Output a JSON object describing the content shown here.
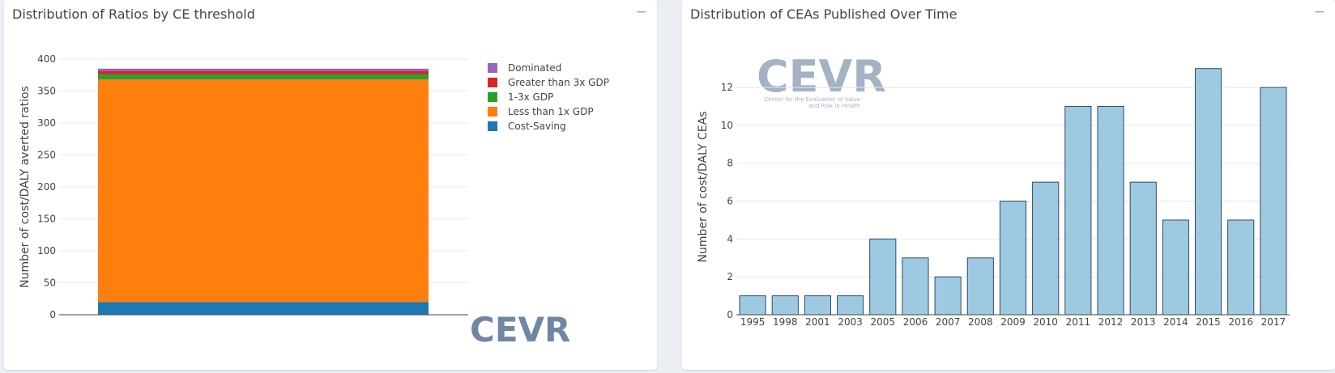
{
  "left_panel": {
    "title": "Distribution of Ratios by CE threshold",
    "collapse_icon": "minus-icon",
    "logo_text": "CEVR"
  },
  "right_panel": {
    "title": "Distribution of CEAs Published Over Time",
    "collapse_icon": "minus-icon",
    "logo_text": "CEVR",
    "logo_subtitle_line1": "Center for the Evaluation of Value",
    "logo_subtitle_line2": "and Risk in Health"
  },
  "chart_data": [
    {
      "type": "bar",
      "stacked": true,
      "categories": [
        ""
      ],
      "series": [
        {
          "name": "Cost-Saving",
          "values": [
            20
          ],
          "color": "#1f77b4"
        },
        {
          "name": "Less than 1x GDP",
          "values": [
            348
          ],
          "color": "#ff7f0e"
        },
        {
          "name": "1-3x GDP",
          "values": [
            8
          ],
          "color": "#2ca02c"
        },
        {
          "name": "Greater than 3x GDP",
          "values": [
            5
          ],
          "color": "#d62728"
        },
        {
          "name": "Dominated",
          "values": [
            4
          ],
          "color": "#9467bd"
        }
      ],
      "legend_order": [
        "Dominated",
        "Greater than 3x GDP",
        "1-3x GDP",
        "Less than 1x GDP",
        "Cost-Saving"
      ],
      "title": "",
      "xlabel": "",
      "ylabel": "Number of cost/DALY averted ratios",
      "ylim": [
        0,
        400
      ],
      "yticks": [
        0,
        50,
        100,
        150,
        200,
        250,
        300,
        350,
        400
      ],
      "grid": true,
      "legend_position": "top-right"
    },
    {
      "type": "bar",
      "categories": [
        "1995",
        "1998",
        "2001",
        "2003",
        "2005",
        "2006",
        "2007",
        "2008",
        "2009",
        "2010",
        "2011",
        "2012",
        "2013",
        "2014",
        "2015",
        "2016",
        "2017"
      ],
      "values": [
        1,
        1,
        1,
        1,
        4,
        3,
        2,
        3,
        6,
        7,
        11,
        11,
        7,
        5,
        13,
        5,
        12
      ],
      "bar_color": "#9ecae1",
      "bar_outline": "#2c4a6e",
      "title": "",
      "xlabel": "",
      "ylabel": "Number of cost/DALY CEAs",
      "ylim": [
        0,
        13.5
      ],
      "yticks": [
        0,
        2,
        4,
        6,
        8,
        10,
        12
      ],
      "grid": true
    }
  ]
}
